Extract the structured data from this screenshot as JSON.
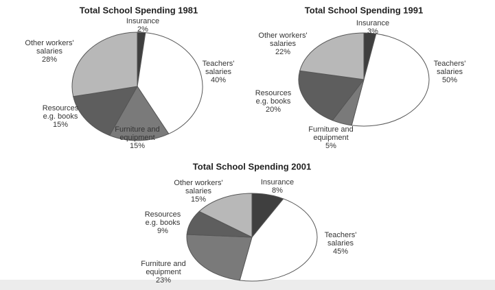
{
  "chart_data": [
    {
      "type": "pie",
      "title": "Total School Spending 1981",
      "categories": [
        "Insurance",
        "Teachers' salaries",
        "Furniture and equipment",
        "Resources e.g. books",
        "Other workers' salaries"
      ],
      "values": [
        2,
        40,
        15,
        15,
        28
      ],
      "value_labels": [
        "2%",
        "40%",
        "15%",
        "15%",
        "28%"
      ],
      "colors": [
        "#3f3f3f",
        "#ffffff",
        "#7a7a7a",
        "#5e5e5e",
        "#b8b8b8"
      ]
    },
    {
      "type": "pie",
      "title": "Total School Spending 1991",
      "categories": [
        "Insurance",
        "Teachers' salaries",
        "Furniture and equipment",
        "Resources e.g. books",
        "Other workers' salaries"
      ],
      "values": [
        3,
        50,
        5,
        20,
        22
      ],
      "value_labels": [
        "3%",
        "50%",
        "5%",
        "20%",
        "22%"
      ],
      "colors": [
        "#3f3f3f",
        "#ffffff",
        "#7a7a7a",
        "#5e5e5e",
        "#b8b8b8"
      ]
    },
    {
      "type": "pie",
      "title": "Total School Spending 2001",
      "categories": [
        "Insurance",
        "Teachers' salaries",
        "Furniture and equipment",
        "Resources e.g. books",
        "Other workers' salaries"
      ],
      "values": [
        8,
        45,
        23,
        9,
        15
      ],
      "value_labels": [
        "8%",
        "45%",
        "23%",
        "9%",
        "15%"
      ],
      "colors": [
        "#3f3f3f",
        "#ffffff",
        "#7a7a7a",
        "#5e5e5e",
        "#b8b8b8"
      ]
    }
  ]
}
